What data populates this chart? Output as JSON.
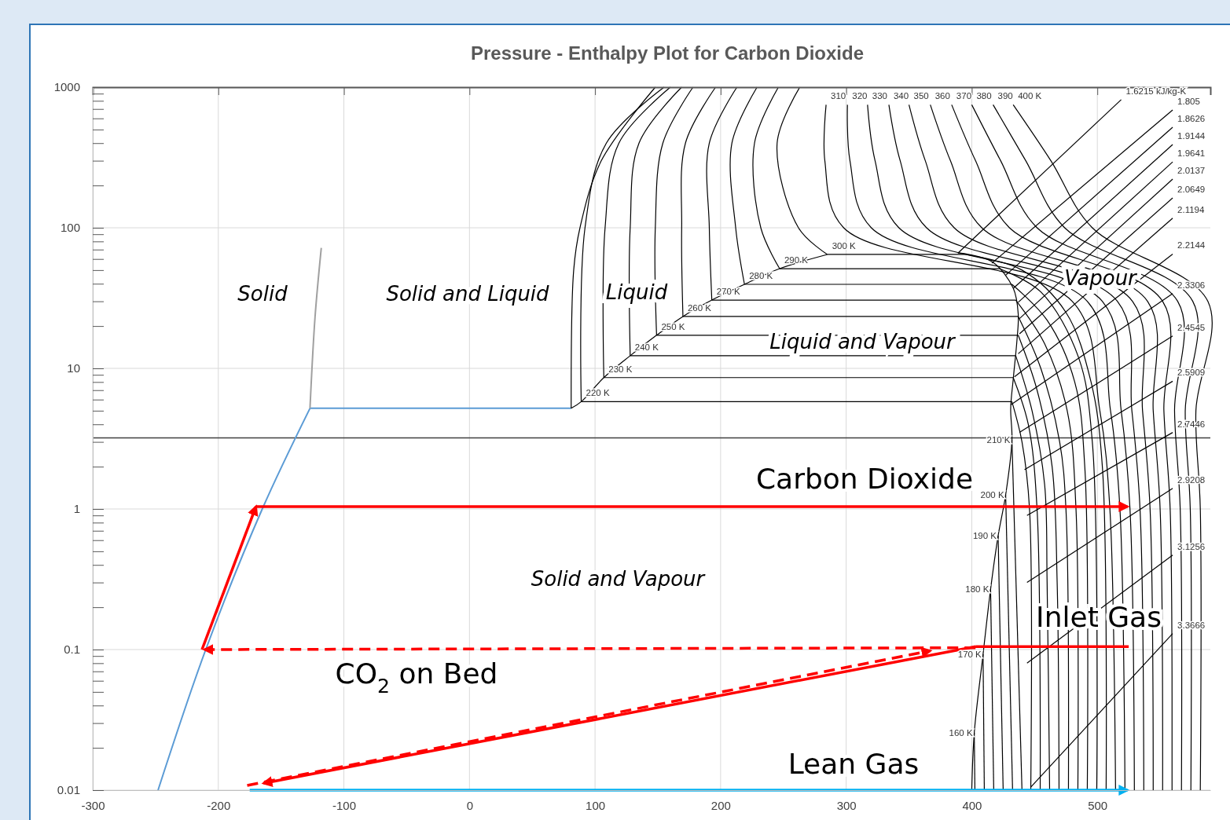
{
  "chart_data": {
    "type": "line",
    "title": "Pressure - Enthalpy Plot for Carbon Dioxide",
    "xlim": [
      -300,
      590
    ],
    "xticks": [
      -300,
      -200,
      -100,
      0,
      100,
      200,
      300,
      400,
      500
    ],
    "ylim": [
      0.01,
      1000
    ],
    "yticks": [
      0.01,
      0.1,
      1,
      10,
      100,
      1000
    ],
    "log": "y",
    "grid": true,
    "marker": "none",
    "ref_lines": [
      {
        "axis": "y",
        "value": 3.2,
        "color": "#404040"
      }
    ],
    "annotations": [
      "Solid",
      "Solid and Liquid",
      "Liquid",
      "Liquid and Vapour",
      "Vapour",
      "Solid and Vapour",
      "Carbon Dioxide",
      "Inlet Gas",
      "CO$_{2}$ on Bed",
      "Lean Gas"
    ],
    "series": [
      {
        "color": "#5b9bd5",
        "x": [
          -248,
          -210,
          -165,
          -127
        ],
        "values": [
          0.01,
          0.1,
          1,
          5.2
        ]
      },
      {
        "color": "#5b9bd5",
        "x": [
          -127,
          81
        ],
        "values": [
          5.2,
          5.2
        ]
      },
      {
        "color": "#a0a0a0",
        "x": [
          -127,
          -123,
          -118
        ],
        "values": [
          5.2,
          23,
          72
        ]
      },
      {
        "color": "#000000",
        "x": [
          81,
          83,
          88,
          105,
          148
        ],
        "values": [
          5.2,
          50,
          100,
          300,
          1000
        ]
      },
      {
        "color": "#000000",
        "x": [
          81,
          89,
          107,
          128,
          149,
          170,
          193,
          219,
          247,
          285
        ],
        "values": [
          5.2,
          5.8,
          8.6,
          12.3,
          17.2,
          23.4,
          30.6,
          39.6,
          51.2,
          64.6
        ]
      },
      {
        "color": "#000000",
        "x": [
          389,
          416,
          433,
          437,
          436,
          433,
          431,
          432,
          427,
          421,
          415,
          409,
          402,
          400
        ],
        "values": [
          66.3,
          57.5,
          37.2,
          24.3,
          15.9,
          8.35,
          5.2,
          3.1,
          1.26,
          0.645,
          0.269,
          0.0925,
          0.0256,
          0.01
        ]
      },
      {
        "color": "#000000",
        "x": [
          155,
          109,
          92,
          89
        ],
        "values": [
          1000,
          400,
          100,
          5.8
        ]
      },
      {
        "color": "#000000",
        "x": [
          160,
          119,
          108,
          107
        ],
        "values": [
          1000,
          400,
          100,
          8.6
        ]
      },
      {
        "color": "#000000",
        "x": [
          169,
          135,
          128,
          128
        ],
        "values": [
          1000,
          400,
          100,
          12.3
        ]
      },
      {
        "color": "#000000",
        "x": [
          178,
          154,
          148,
          149
        ],
        "values": [
          1000,
          400,
          100,
          17.2
        ]
      },
      {
        "color": "#000000",
        "x": [
          196,
          172,
          169,
          170
        ],
        "values": [
          1000,
          400,
          100,
          23.4
        ]
      },
      {
        "color": "#000000",
        "x": [
          213,
          191,
          191,
          193
        ],
        "values": [
          1000,
          400,
          100,
          30.6
        ]
      },
      {
        "color": "#000000",
        "x": [
          229,
          209,
          212,
          219
        ],
        "values": [
          1000,
          400,
          100,
          39.6
        ]
      },
      {
        "color": "#000000",
        "x": [
          246,
          227,
          232,
          247
        ],
        "values": [
          1000,
          400,
          100,
          51.2
        ]
      },
      {
        "color": "#000000",
        "x": [
          263,
          245,
          262,
          285
        ],
        "values": [
          1000,
          400,
          100,
          64.6
        ]
      },
      {
        "name": "220 K",
        "color": "#000000",
        "x": [
          89,
          432,
          440,
          446,
          447
        ],
        "values": [
          5.8,
          5.8,
          3,
          1,
          0.01
        ]
      },
      {
        "name": "230 K",
        "color": "#000000",
        "x": [
          107,
          433,
          445,
          452,
          454.5
        ],
        "values": [
          8.6,
          8.6,
          4,
          1,
          0.01
        ]
      },
      {
        "name": "240 K",
        "color": "#000000",
        "x": [
          128,
          435,
          448,
          458,
          460,
          462
        ],
        "values": [
          12.3,
          12.3,
          5,
          1.5,
          0.3,
          0.01
        ]
      },
      {
        "name": "250 K",
        "color": "#000000",
        "x": [
          149,
          437,
          452,
          464,
          468,
          469.5
        ],
        "values": [
          17.2,
          17.2,
          7,
          2,
          0.3,
          0.01
        ]
      },
      {
        "name": "260 K",
        "color": "#000000",
        "x": [
          170,
          437,
          455,
          470,
          475,
          477
        ],
        "values": [
          23.4,
          23.4,
          10,
          3,
          1,
          0.01
        ]
      },
      {
        "name": "270 K",
        "color": "#000000",
        "x": [
          193,
          435,
          458,
          476,
          483,
          484.5
        ],
        "values": [
          30.6,
          30.6,
          15,
          5,
          1,
          0.01
        ]
      },
      {
        "name": "280 K",
        "color": "#000000",
        "x": [
          219,
          432,
          460,
          482,
          490,
          492
        ],
        "values": [
          39.6,
          39.6,
          22,
          8,
          2,
          0.01
        ]
      },
      {
        "name": "290 K",
        "color": "#000000",
        "x": [
          247,
          422,
          455,
          485,
          496,
          499.5
        ],
        "values": [
          51.2,
          51.2,
          35,
          12,
          3,
          0.01
        ]
      },
      {
        "name": "300 K",
        "color": "#000000",
        "x": [
          285,
          395,
          440,
          475,
          495,
          504,
          507
        ],
        "values": [
          64.6,
          64.6,
          50,
          25,
          8,
          2,
          0.01
        ]
      },
      {
        "name": "310",
        "color": "#000000",
        "x": [
          284,
          283,
          298,
          480,
          502,
          510,
          514.5
        ],
        "values": [
          750,
          300,
          100,
          30,
          5,
          1,
          0.01
        ]
      },
      {
        "name": "320",
        "color": "#000000",
        "x": [
          301,
          303,
          320,
          492,
          510.5,
          518,
          522
        ],
        "values": [
          750,
          300,
          100,
          30,
          5,
          1,
          0.01
        ]
      },
      {
        "name": "330",
        "color": "#000000",
        "x": [
          317,
          323,
          342,
          504,
          519,
          526,
          529.5
        ],
        "values": [
          750,
          300,
          100,
          30,
          5,
          1,
          0.01
        ]
      },
      {
        "name": "340",
        "color": "#000000",
        "x": [
          334,
          343,
          364,
          516,
          527.5,
          534,
          537
        ],
        "values": [
          750,
          300,
          100,
          30,
          5,
          1,
          0.01
        ]
      },
      {
        "name": "350",
        "color": "#000000",
        "x": [
          350,
          363,
          386,
          528,
          536,
          542,
          544.5
        ],
        "values": [
          750,
          300,
          100,
          30,
          5,
          1,
          0.01
        ]
      },
      {
        "name": "360",
        "color": "#000000",
        "x": [
          367,
          383,
          408,
          540,
          544.5,
          550,
          552
        ],
        "values": [
          750,
          300,
          100,
          30,
          5,
          1,
          0.01
        ]
      },
      {
        "name": "370",
        "color": "#000000",
        "x": [
          384,
          403,
          430,
          552,
          553,
          558,
          559.5
        ],
        "values": [
          750,
          300,
          100,
          30,
          5,
          1,
          0.01
        ]
      },
      {
        "name": "380",
        "color": "#000000",
        "x": [
          400,
          423,
          452,
          564,
          561.5,
          566,
          567
        ],
        "values": [
          750,
          300,
          100,
          30,
          5,
          1,
          0.01
        ]
      },
      {
        "name": "390",
        "color": "#000000",
        "x": [
          417,
          443,
          474,
          576,
          570,
          574,
          574.5
        ],
        "values": [
          750,
          300,
          100,
          30,
          5,
          1,
          0.01
        ]
      },
      {
        "name": "400 K",
        "color": "#000000",
        "x": [
          433,
          463,
          496,
          588,
          578.5,
          582,
          582
        ],
        "values": [
          750,
          300,
          100,
          30,
          5,
          1,
          0.01
        ]
      },
      {
        "name": "210 K",
        "color": "#000000",
        "x": [
          432,
          440
        ],
        "values": [
          3.1,
          0.01
        ]
      },
      {
        "name": "200 K",
        "color": "#000000",
        "x": [
          427,
          432.5
        ],
        "values": [
          1.26,
          0.01
        ]
      },
      {
        "name": "190 K",
        "color": "#000000",
        "x": [
          421,
          425
        ],
        "values": [
          0.645,
          0.01
        ]
      },
      {
        "name": "180 K",
        "color": "#000000",
        "x": [
          415,
          417.5
        ],
        "values": [
          0.269,
          0.01
        ]
      },
      {
        "name": "170 K",
        "color": "#000000",
        "x": [
          409,
          410
        ],
        "values": [
          0.0925,
          0.01
        ]
      },
      {
        "name": "160 K",
        "color": "#000000",
        "x": [
          402,
          402.5
        ],
        "values": [
          0.0256,
          0.01
        ]
      },
      {
        "name": "1.6215 kJ/kg-K",
        "color": "#000000",
        "x": [
          519,
          389
        ],
        "values": [
          815,
          66
        ]
      },
      {
        "name": "1.805",
        "color": "#000000",
        "x": [
          560,
          416
        ],
        "values": [
          689,
          56
        ]
      },
      {
        "name": "1.8626",
        "color": "#000000",
        "x": [
          560,
          427
        ],
        "values": [
          519,
          46
        ]
      },
      {
        "name": "1.9144",
        "color": "#000000",
        "x": [
          560,
          433
        ],
        "values": [
          391,
          37
        ]
      },
      {
        "name": "1.9641",
        "color": "#000000",
        "x": [
          560,
          437
        ],
        "values": [
          294,
          29.5
        ]
      },
      {
        "name": "2.0137",
        "color": "#000000",
        "x": [
          560,
          438
        ],
        "values": [
          222,
          22.6
        ]
      },
      {
        "name": "2.0649",
        "color": "#000000",
        "x": [
          560,
          438
        ],
        "values": [
          163,
          17.6
        ]
      },
      {
        "name": "2.1194",
        "color": "#000000",
        "x": [
          560,
          437
        ],
        "values": [
          117,
          12.7
        ]
      },
      {
        "name": "2.2144",
        "color": "#000000",
        "x": [
          560,
          434
        ],
        "values": [
          65,
          8.7
        ]
      },
      {
        "name": "2.3306",
        "color": "#000000",
        "x": [
          560,
          431
        ],
        "values": [
          34,
          5.5
        ]
      },
      {
        "name": "2.4545",
        "color": "#000000",
        "x": [
          560,
          438
        ],
        "values": [
          17,
          3.5
        ]
      },
      {
        "name": "2.5909",
        "color": "#000000",
        "x": [
          560,
          442
        ],
        "values": [
          8.1,
          1.9
        ]
      },
      {
        "name": "2.7446",
        "color": "#000000",
        "x": [
          560,
          444
        ],
        "values": [
          3.5,
          0.9
        ]
      },
      {
        "name": "2.9208",
        "color": "#000000",
        "x": [
          560,
          444
        ],
        "values": [
          1.4,
          0.3
        ]
      },
      {
        "name": "3.1256",
        "color": "#000000",
        "x": [
          560,
          444
        ],
        "values": [
          0.47,
          0.08
        ]
      },
      {
        "name": "3.3666",
        "color": "#000000",
        "x": [
          560,
          447
        ],
        "values": [
          0.13,
          0.0105
        ]
      },
      {
        "color": "#ff0000",
        "x": [
          -213,
          -170
        ],
        "values": [
          0.1,
          1.04
        ]
      },
      {
        "color": "#ff0000",
        "x": [
          -170,
          524
        ],
        "values": [
          1.04,
          1.04
        ]
      },
      {
        "color": "#ff0000",
        "x": [
          525,
          403,
          -164
        ],
        "values": [
          0.105,
          0.105,
          0.0112
        ]
      },
      {
        "color": "#ff0000",
        "x": [
          -177,
          367
        ],
        "values": [
          0.0108,
          0.098
        ],
        "line_style": "dashed"
      },
      {
        "color": "#ff0000",
        "x": [
          403,
          -211
        ],
        "values": [
          0.103,
          0.1
        ],
        "line_style": "dashed"
      },
      {
        "color": "#00b0f0",
        "x": [
          -175,
          524
        ],
        "values": [
          0.01,
          0.01
        ]
      }
    ]
  }
}
